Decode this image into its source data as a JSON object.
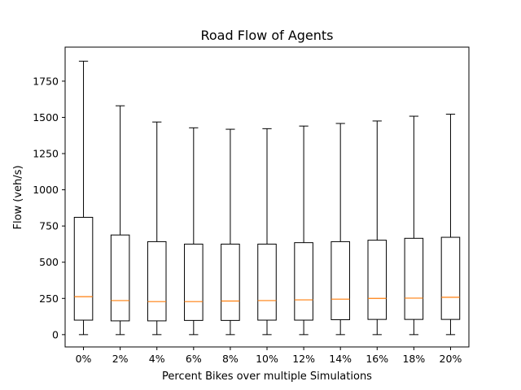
{
  "chart_data": {
    "type": "boxplot",
    "title": "Road Flow of Agents",
    "xlabel": "Percent Bikes over multiple Simulations",
    "ylabel": "Flow (veh/s)",
    "categories": [
      "0%",
      "2%",
      "4%",
      "6%",
      "8%",
      "10%",
      "12%",
      "14%",
      "16%",
      "18%",
      "20%"
    ],
    "ylim": [
      -85,
      1985
    ],
    "yticks": [
      0,
      250,
      500,
      750,
      1000,
      1250,
      1500,
      1750
    ],
    "boxes": [
      {
        "whisker_low": 0,
        "q1": 100,
        "median": 262,
        "q3": 810,
        "whisker_high": 1888
      },
      {
        "whisker_low": 0,
        "q1": 95,
        "median": 235,
        "q3": 688,
        "whisker_high": 1580
      },
      {
        "whisker_low": 0,
        "q1": 95,
        "median": 228,
        "q3": 642,
        "whisker_high": 1468
      },
      {
        "whisker_low": 0,
        "q1": 98,
        "median": 228,
        "q3": 625,
        "whisker_high": 1428
      },
      {
        "whisker_low": 0,
        "q1": 98,
        "median": 232,
        "q3": 625,
        "whisker_high": 1418
      },
      {
        "whisker_low": 0,
        "q1": 100,
        "median": 235,
        "q3": 625,
        "whisker_high": 1422
      },
      {
        "whisker_low": 0,
        "q1": 100,
        "median": 240,
        "q3": 635,
        "whisker_high": 1440
      },
      {
        "whisker_low": 0,
        "q1": 103,
        "median": 245,
        "q3": 642,
        "whisker_high": 1458
      },
      {
        "whisker_low": 0,
        "q1": 105,
        "median": 250,
        "q3": 652,
        "whisker_high": 1475
      },
      {
        "whisker_low": 0,
        "q1": 105,
        "median": 252,
        "q3": 665,
        "whisker_high": 1508
      },
      {
        "whisker_low": 0,
        "q1": 105,
        "median": 258,
        "q3": 672,
        "whisker_high": 1522
      }
    ],
    "colors": {
      "box": "#000000",
      "median": "#ff7f0e",
      "background": "#ffffff"
    },
    "grid": false,
    "legend": "none"
  }
}
